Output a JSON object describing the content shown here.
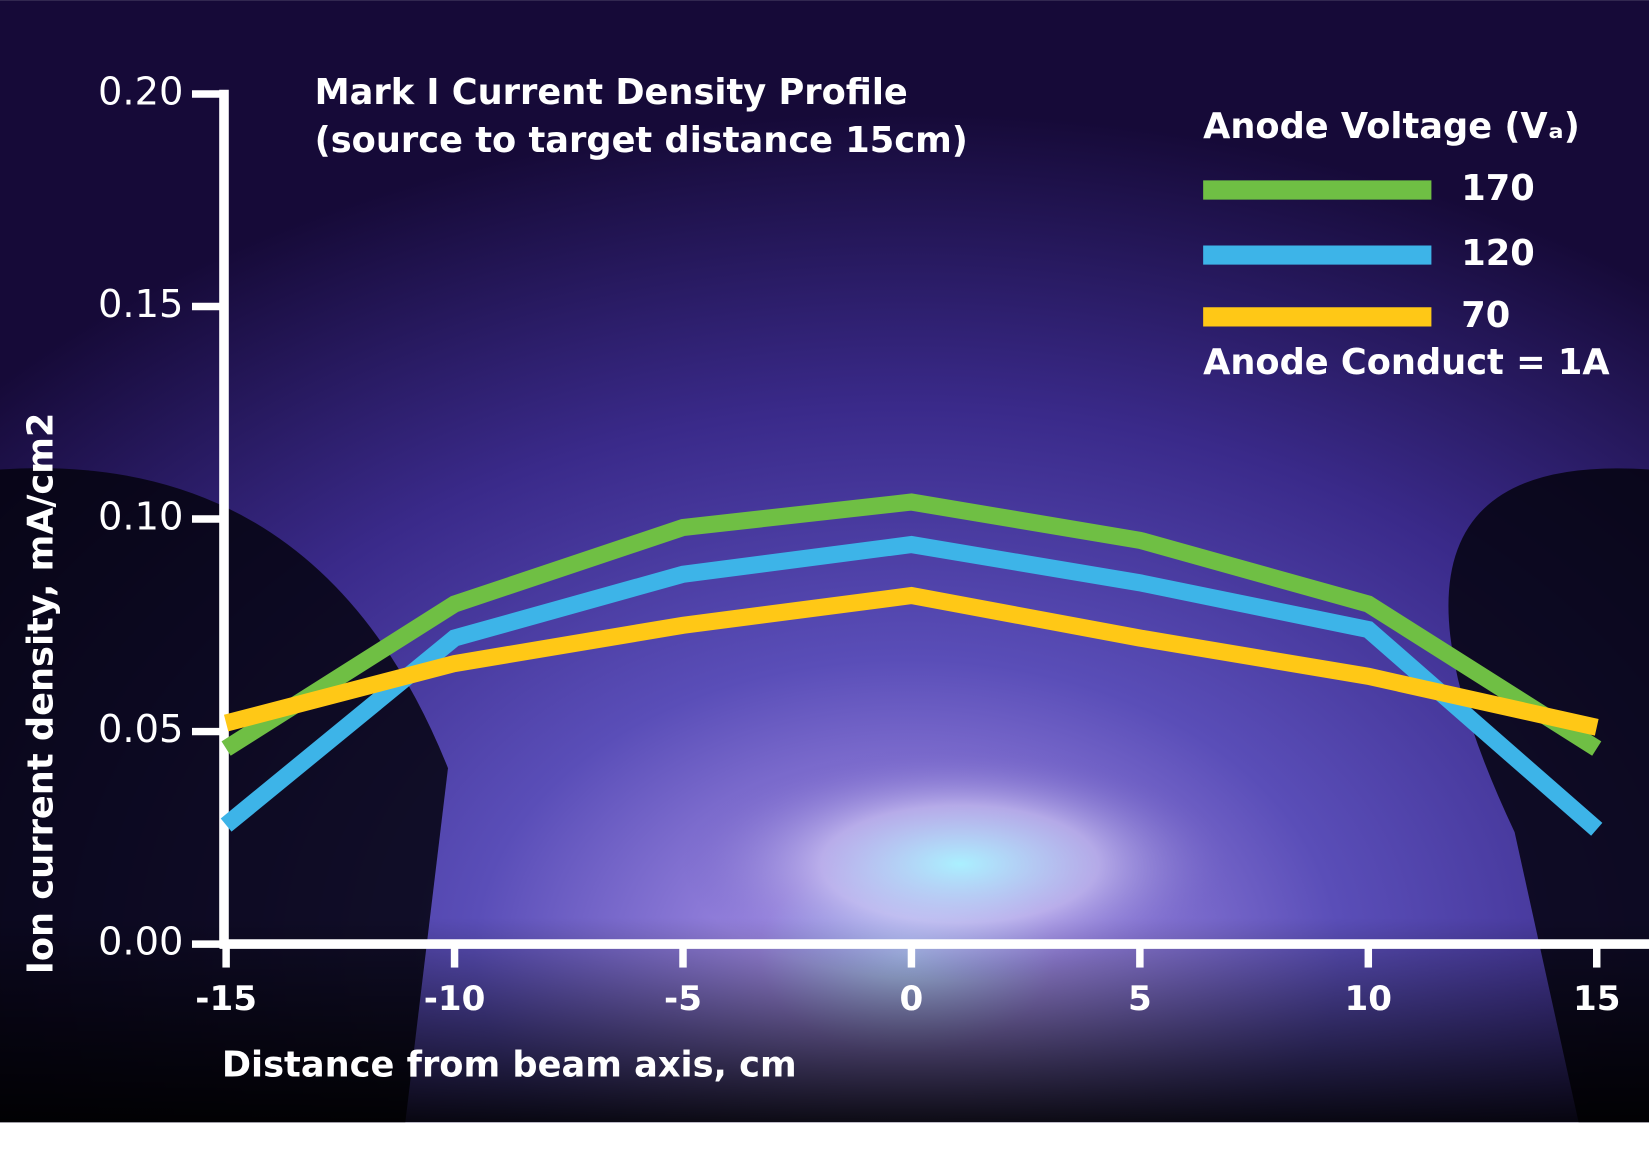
{
  "chart_data": {
    "type": "line",
    "title": "Mark I Current Density Profile",
    "subtitle": "(source to target distance 15cm)",
    "x_label": "Distance from beam axis, cm",
    "y_label": "Ion current density, mA/cm2",
    "legend_title": "Anode Voltage (Vₐ)",
    "annotation": "Anode Conduct = 1A",
    "x": [
      -15,
      -10,
      -5,
      0,
      5,
      10,
      15
    ],
    "series": [
      {
        "name": "170",
        "color": "#6fbf44",
        "values": [
          0.046,
          0.08,
          0.098,
          0.104,
          0.095,
          0.08,
          0.046
        ]
      },
      {
        "name": "120",
        "color": "#3db4e8",
        "values": [
          0.028,
          0.072,
          0.087,
          0.094,
          0.085,
          0.074,
          0.027
        ]
      },
      {
        "name": "70",
        "color": "#ffc816",
        "values": [
          0.052,
          0.066,
          0.075,
          0.082,
          0.072,
          0.063,
          0.051
        ]
      }
    ],
    "xlim": [
      -15,
      15
    ],
    "xticks": [
      -15,
      -10,
      -5,
      0,
      5,
      10,
      15
    ],
    "ylim": [
      0,
      0.2
    ],
    "yticks": [
      {
        "value": 0,
        "label": "0.00"
      },
      {
        "value": 0.05,
        "label": "0.05"
      },
      {
        "value": 0.1,
        "label": "0.10"
      },
      {
        "value": 0.15,
        "label": "0.15"
      },
      {
        "value": 0.2,
        "label": "0.20"
      }
    ]
  }
}
